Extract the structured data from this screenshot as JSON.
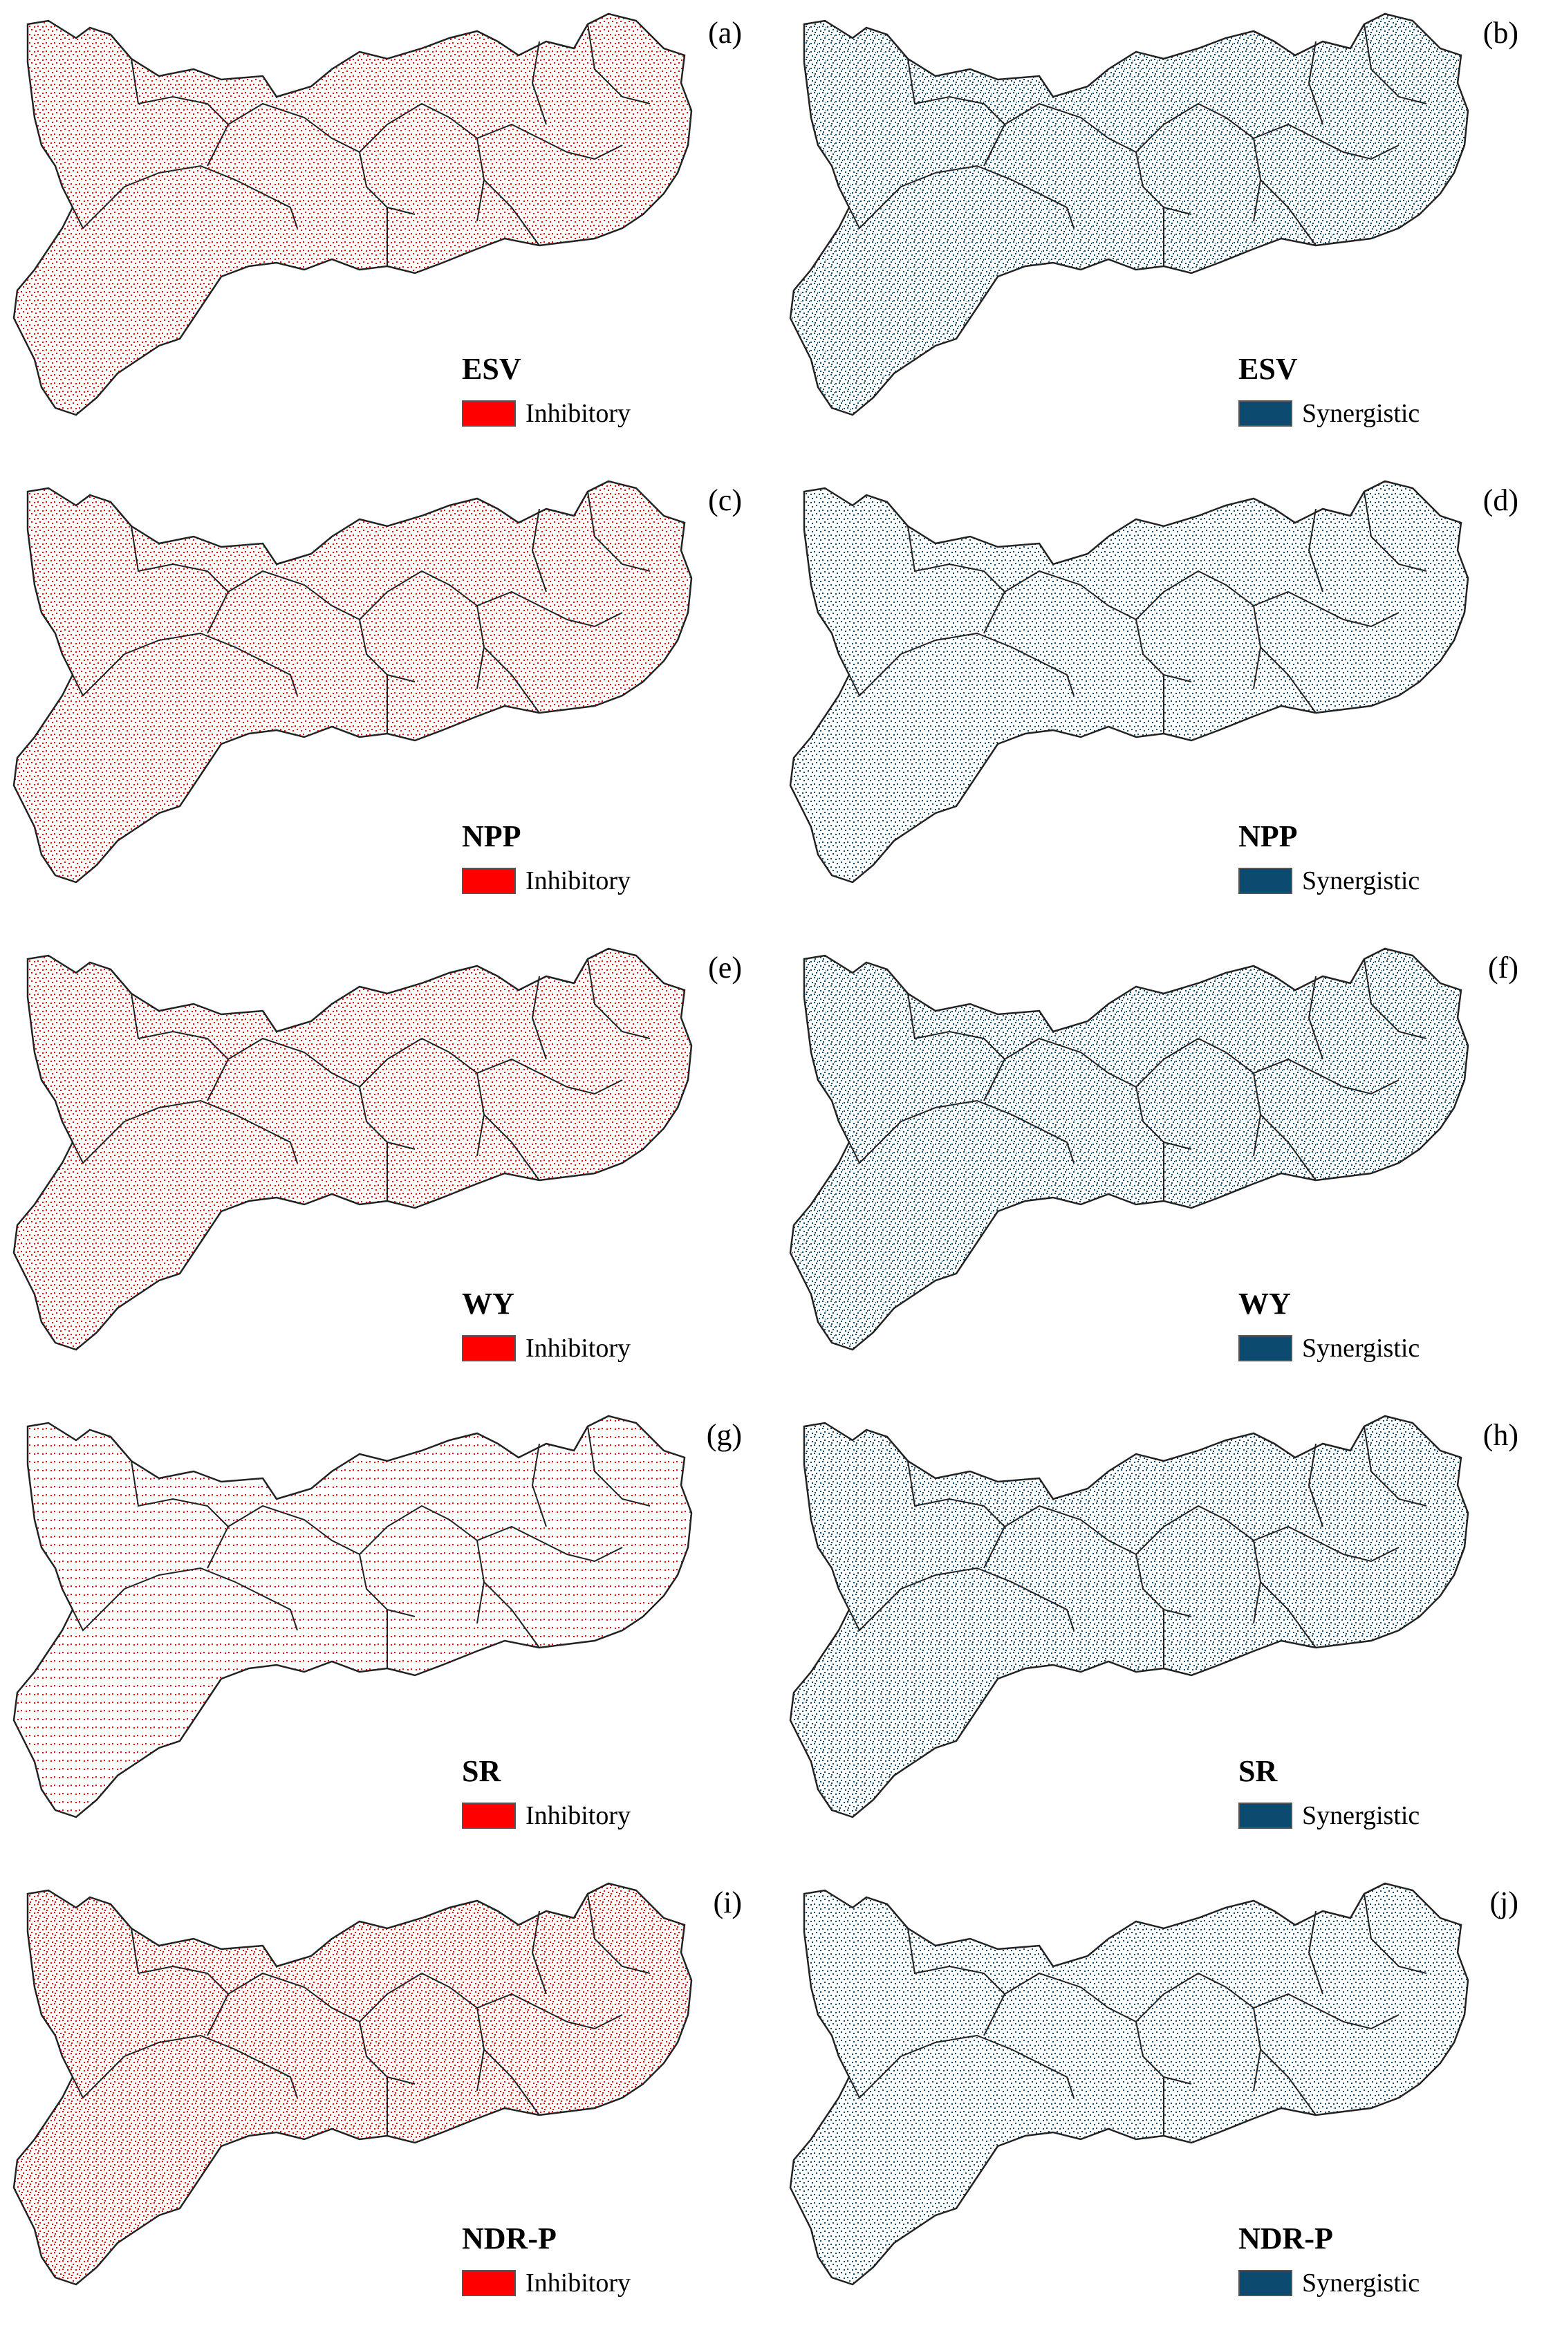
{
  "colors": {
    "inhibitory": "#ff0000",
    "synergistic": "#0d4a70",
    "boundary": "#222222"
  },
  "panels": [
    {
      "letter": "(a)",
      "variable": "ESV",
      "legend": "Inhibitory",
      "relation": "inhibitory",
      "intensity": 0.55
    },
    {
      "letter": "(b)",
      "variable": "ESV",
      "legend": "Synergistic",
      "relation": "synergistic",
      "intensity": 0.72
    },
    {
      "letter": "(c)",
      "variable": "NPP",
      "legend": "Inhibitory",
      "relation": "inhibitory",
      "intensity": 0.55
    },
    {
      "letter": "(d)",
      "variable": "NPP",
      "legend": "Synergistic",
      "relation": "synergistic",
      "intensity": 0.45
    },
    {
      "letter": "(e)",
      "variable": "WY",
      "legend": "Inhibitory",
      "relation": "inhibitory",
      "intensity": 0.55
    },
    {
      "letter": "(f)",
      "variable": "WY",
      "legend": "Synergistic",
      "relation": "synergistic",
      "intensity": 0.75
    },
    {
      "letter": "(g)",
      "variable": "SR",
      "legend": "Inhibitory",
      "relation": "inhibitory",
      "intensity": 0.2
    },
    {
      "letter": "(h)",
      "variable": "SR",
      "legend": "Synergistic",
      "relation": "synergistic",
      "intensity": 0.62
    },
    {
      "letter": "(i)",
      "variable": "NDR-P",
      "legend": "Inhibitory",
      "relation": "inhibitory",
      "intensity": 0.62
    },
    {
      "letter": "(j)",
      "variable": "NDR-P",
      "legend": "Synergistic",
      "relation": "synergistic",
      "intensity": 0.55
    }
  ]
}
